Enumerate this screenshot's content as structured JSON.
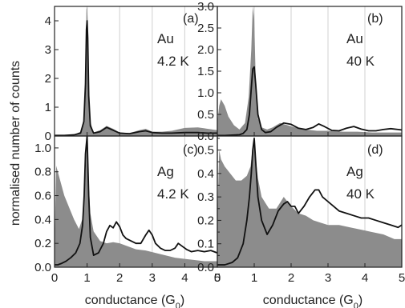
{
  "figure": {
    "ylabel": "normalised number of counts",
    "xlabel_main": "conductance (G",
    "xlabel_sub": "0",
    "xlabel_end": ")"
  },
  "colors": {
    "fill": "#8c8c8c",
    "line": "#111111",
    "grid": "#d0d0d0",
    "axis": "#222222"
  },
  "chart_data": [
    {
      "type": "area",
      "panel": "(a)",
      "metal": "Au",
      "temperature": "4.2 K",
      "xlim": [
        0,
        5
      ],
      "ylim": [
        0,
        4.5
      ],
      "x_ticks": [
        "0",
        "1",
        "2",
        "3",
        "4",
        "5"
      ],
      "y_ticks": [
        0,
        1,
        2,
        3,
        4
      ],
      "y_tick_labels": [
        "0",
        "1",
        "2",
        "3",
        "4"
      ],
      "series": [
        {
          "kind": "fill",
          "x": [
            0,
            0.3,
            0.6,
            0.8,
            0.9,
            0.95,
            0.98,
            1.0,
            1.02,
            1.05,
            1.1,
            1.2,
            1.4,
            1.6,
            1.8,
            2.0,
            2.3,
            2.6,
            2.8,
            3.0,
            3.3,
            3.6,
            4.0,
            4.4,
            4.7,
            5.0
          ],
          "y": [
            0.03,
            0.02,
            0.05,
            0.15,
            0.6,
            2.2,
            4.4,
            4.5,
            4.0,
            1.8,
            0.5,
            0.12,
            0.2,
            0.35,
            0.25,
            0.12,
            0.1,
            0.2,
            0.25,
            0.15,
            0.15,
            0.18,
            0.28,
            0.3,
            0.25,
            0.2
          ]
        },
        {
          "kind": "line",
          "x": [
            0,
            0.3,
            0.6,
            0.8,
            0.9,
            0.95,
            0.98,
            1.0,
            1.02,
            1.05,
            1.1,
            1.2,
            1.4,
            1.6,
            1.8,
            2.0,
            2.3,
            2.6,
            2.8,
            3.0,
            3.3,
            3.6,
            4.0,
            4.4,
            4.7,
            5.0
          ],
          "y": [
            0.02,
            0.02,
            0.04,
            0.1,
            0.5,
            1.8,
            3.7,
            4.0,
            3.4,
            1.4,
            0.35,
            0.1,
            0.15,
            0.3,
            0.2,
            0.1,
            0.08,
            0.15,
            0.18,
            0.12,
            0.1,
            0.1,
            0.12,
            0.12,
            0.1,
            0.1
          ]
        }
      ]
    },
    {
      "type": "area",
      "panel": "(b)",
      "metal": "Au",
      "temperature": "40 K",
      "xlim": [
        0,
        5
      ],
      "ylim": [
        0,
        3.0
      ],
      "x_ticks": [
        "0",
        "1",
        "2",
        "3",
        "4",
        "5"
      ],
      "y_ticks": [
        0.0,
        0.5,
        1.0,
        1.5,
        2.0,
        2.5,
        3.0
      ],
      "y_tick_labels": [
        "0.0",
        "0.5",
        "1.0",
        "1.5",
        "2.0",
        "2.5",
        "3.0"
      ],
      "series": [
        {
          "kind": "fill",
          "x": [
            0,
            0.05,
            0.1,
            0.2,
            0.3,
            0.45,
            0.6,
            0.75,
            0.85,
            0.92,
            0.96,
            1.0,
            1.04,
            1.1,
            1.2,
            1.35,
            1.5,
            1.7,
            1.9,
            2.1,
            2.4,
            2.7,
            3.0,
            3.4,
            3.8,
            4.2,
            4.6,
            5.0
          ],
          "y": [
            0.3,
            0.7,
            0.85,
            0.7,
            0.45,
            0.25,
            0.15,
            0.3,
            0.9,
            2.0,
            3.0,
            2.7,
            1.3,
            0.4,
            0.2,
            0.15,
            0.2,
            0.3,
            0.25,
            0.2,
            0.15,
            0.12,
            0.12,
            0.1,
            0.1,
            0.08,
            0.08,
            0.08
          ]
        },
        {
          "kind": "line",
          "x": [
            0,
            0.2,
            0.4,
            0.6,
            0.7,
            0.8,
            0.87,
            0.92,
            0.96,
            1.0,
            1.04,
            1.1,
            1.2,
            1.3,
            1.45,
            1.6,
            1.8,
            2.0,
            2.2,
            2.4,
            2.6,
            2.75,
            2.9,
            3.1,
            3.3,
            3.5,
            3.7,
            3.9,
            4.1,
            4.3,
            4.5,
            4.7,
            4.9,
            5.0
          ],
          "y": [
            0.01,
            0.01,
            0.02,
            0.03,
            0.06,
            0.15,
            0.5,
            1.1,
            1.55,
            1.6,
            1.2,
            0.5,
            0.15,
            0.08,
            0.1,
            0.2,
            0.3,
            0.27,
            0.18,
            0.15,
            0.2,
            0.28,
            0.22,
            0.13,
            0.12,
            0.18,
            0.22,
            0.16,
            0.12,
            0.12,
            0.15,
            0.17,
            0.15,
            0.14
          ]
        }
      ]
    },
    {
      "type": "area",
      "panel": "(c)",
      "metal": "Ag",
      "temperature": "4.2 K",
      "xlim": [
        0,
        5
      ],
      "ylim": [
        0,
        1.1
      ],
      "x_ticks": [
        "0",
        "1",
        "2",
        "3",
        "4",
        "5"
      ],
      "y_ticks": [
        0.0,
        0.2,
        0.4,
        0.6,
        0.8,
        1.0
      ],
      "y_tick_labels": [
        "0.0",
        "0.2",
        "0.4",
        "0.6",
        "0.8",
        "1.0"
      ],
      "series": [
        {
          "kind": "fill",
          "x": [
            0,
            0.05,
            0.15,
            0.3,
            0.45,
            0.6,
            0.75,
            0.85,
            0.92,
            0.97,
            1.0,
            1.03,
            1.1,
            1.2,
            1.4,
            1.6,
            1.8,
            2.0,
            2.2,
            2.5,
            2.8,
            3.1,
            3.4,
            3.7,
            4.0,
            4.3,
            4.6,
            5.0
          ],
          "y": [
            0.15,
            0.85,
            0.75,
            0.6,
            0.5,
            0.4,
            0.32,
            0.4,
            0.6,
            0.9,
            1.1,
            0.8,
            0.45,
            0.3,
            0.22,
            0.2,
            0.21,
            0.2,
            0.18,
            0.15,
            0.14,
            0.12,
            0.1,
            0.08,
            0.07,
            0.06,
            0.05,
            0.05
          ]
        },
        {
          "kind": "line",
          "x": [
            0,
            0.1,
            0.2,
            0.35,
            0.5,
            0.65,
            0.78,
            0.86,
            0.91,
            0.95,
            1.0,
            1.05,
            1.1,
            1.2,
            1.35,
            1.5,
            1.6,
            1.7,
            1.8,
            1.9,
            2.0,
            2.1,
            2.2,
            2.35,
            2.5,
            2.65,
            2.8,
            2.9,
            3.0,
            3.1,
            3.25,
            3.4,
            3.55,
            3.7,
            3.8,
            3.9,
            4.05,
            4.2,
            4.4,
            4.6,
            4.8,
            5.0
          ],
          "y": [
            0.02,
            0.02,
            0.03,
            0.05,
            0.08,
            0.12,
            0.2,
            0.35,
            0.6,
            0.95,
            1.1,
            0.6,
            0.25,
            0.1,
            0.12,
            0.2,
            0.3,
            0.35,
            0.33,
            0.38,
            0.34,
            0.27,
            0.24,
            0.22,
            0.2,
            0.2,
            0.27,
            0.31,
            0.27,
            0.2,
            0.16,
            0.14,
            0.14,
            0.16,
            0.2,
            0.18,
            0.15,
            0.13,
            0.14,
            0.13,
            0.14,
            0.12
          ]
        }
      ]
    },
    {
      "type": "area",
      "panel": "(d)",
      "metal": "Ag",
      "temperature": "40 K",
      "xlim": [
        0,
        5
      ],
      "ylim": [
        0,
        0.56
      ],
      "x_ticks": [
        "0",
        "1",
        "2",
        "3",
        "4",
        "5"
      ],
      "y_ticks": [
        0.0,
        0.05,
        0.1,
        0.15,
        0.2,
        0.25,
        0.3,
        0.35,
        0.4,
        0.45,
        0.5,
        0.55
      ],
      "y_tick_labels": [
        "0.0",
        "",
        "0.1",
        "",
        "0.2",
        "",
        "0.3",
        "",
        "0.4",
        "",
        "0.5",
        ""
      ],
      "series": [
        {
          "kind": "fill",
          "x": [
            0,
            0.05,
            0.1,
            0.2,
            0.35,
            0.5,
            0.65,
            0.8,
            0.9,
            0.95,
            1.0,
            1.05,
            1.1,
            1.2,
            1.4,
            1.6,
            1.8,
            2.0,
            2.2,
            2.4,
            2.6,
            2.8,
            3.0,
            3.3,
            3.6,
            3.9,
            4.2,
            4.5,
            4.8,
            5.0
          ],
          "y": [
            0.2,
            0.5,
            0.46,
            0.43,
            0.4,
            0.37,
            0.37,
            0.39,
            0.43,
            0.5,
            0.55,
            0.45,
            0.38,
            0.3,
            0.25,
            0.25,
            0.3,
            0.26,
            0.23,
            0.22,
            0.2,
            0.19,
            0.18,
            0.18,
            0.17,
            0.16,
            0.15,
            0.14,
            0.12,
            0.12
          ]
        },
        {
          "kind": "line",
          "x": [
            0,
            0.2,
            0.4,
            0.55,
            0.7,
            0.8,
            0.87,
            0.92,
            0.96,
            1.0,
            1.04,
            1.1,
            1.2,
            1.35,
            1.5,
            1.65,
            1.8,
            1.9,
            2.0,
            2.1,
            2.2,
            2.35,
            2.5,
            2.65,
            2.75,
            2.85,
            3.0,
            3.15,
            3.3,
            3.5,
            3.7,
            3.9,
            4.1,
            4.3,
            4.5,
            4.7,
            4.9,
            5.0
          ],
          "y": [
            0.01,
            0.01,
            0.02,
            0.04,
            0.1,
            0.2,
            0.3,
            0.4,
            0.5,
            0.55,
            0.45,
            0.3,
            0.2,
            0.14,
            0.18,
            0.24,
            0.27,
            0.28,
            0.26,
            0.26,
            0.23,
            0.26,
            0.3,
            0.33,
            0.33,
            0.3,
            0.28,
            0.26,
            0.24,
            0.23,
            0.22,
            0.21,
            0.21,
            0.2,
            0.19,
            0.18,
            0.17,
            0.18
          ]
        }
      ]
    }
  ]
}
